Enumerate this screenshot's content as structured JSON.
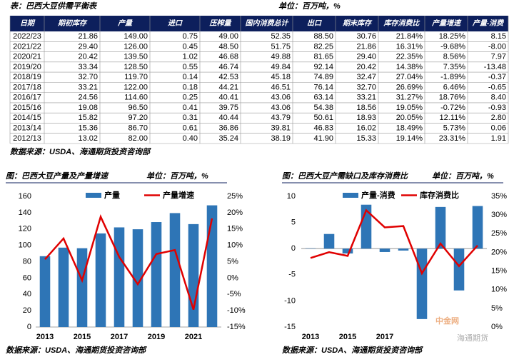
{
  "table": {
    "title": "表：巴西大豆供需平衡表",
    "unit": "单位：百万吨，%",
    "columns": [
      "日期",
      "期初库存",
      "产量",
      "进口",
      "压榨量",
      "国内消费总计",
      "出口",
      "期末库存",
      "库存消费比",
      "产量增速",
      "产量-消费"
    ],
    "rows": [
      [
        "2022/23",
        "21.86",
        "149.00",
        "0.75",
        "49.00",
        "52.35",
        "88.50",
        "30.76",
        "21.84%",
        "18.25%",
        "8.15"
      ],
      [
        "2021/22",
        "29.40",
        "126.00",
        "0.45",
        "48.50",
        "51.75",
        "82.25",
        "21.86",
        "16.31%",
        "-9.68%",
        "-8.00"
      ],
      [
        "2020/21",
        "20.42",
        "139.50",
        "1.02",
        "46.68",
        "49.88",
        "81.65",
        "29.40",
        "22.35%",
        "8.56%",
        "7.97"
      ],
      [
        "2019/20",
        "33.34",
        "128.50",
        "0.55",
        "46.74",
        "49.84",
        "92.14",
        "20.42",
        "14.38%",
        "7.35%",
        "-13.48"
      ],
      [
        "2018/19",
        "32.70",
        "119.70",
        "0.14",
        "42.53",
        "45.18",
        "74.89",
        "32.47",
        "27.04%",
        "-1.89%",
        "-0.37"
      ],
      [
        "2017/18",
        "33.21",
        "122.00",
        "0.18",
        "44.21",
        "46.51",
        "76.14",
        "32.70",
        "26.69%",
        "6.46%",
        "-0.65"
      ],
      [
        "2016/17",
        "24.56",
        "114.60",
        "0.25",
        "40.41",
        "43.06",
        "63.14",
        "33.21",
        "31.27%",
        "18.76%",
        "8.40"
      ],
      [
        "2015/16",
        "19.08",
        "96.50",
        "0.41",
        "39.75",
        "43.06",
        "54.38",
        "18.56",
        "19.05%",
        "-0.72%",
        "-0.93"
      ],
      [
        "2014/15",
        "15.82",
        "97.20",
        "0.31",
        "40.44",
        "43.79",
        "50.61",
        "18.93",
        "20.05%",
        "12.11%",
        "2.80"
      ],
      [
        "2013/14",
        "15.36",
        "86.70",
        "0.61",
        "36.86",
        "39.81",
        "46.83",
        "16.02",
        "18.49%",
        "5.73%",
        "0.06"
      ],
      [
        "2012/13",
        "13.02",
        "82.00",
        "0.40",
        "35.24",
        "38.19",
        "41.90",
        "15.33",
        "19.14%",
        "23.31%",
        "1.91"
      ]
    ],
    "source": "数据来源：USDA、海通期货投资咨询部"
  },
  "chart_data": [
    {
      "type": "combo",
      "title": "图：巴西大豆产量及产量增速",
      "unit": "单位：百万吨，%",
      "categories": [
        "2013",
        null,
        "2015",
        null,
        "2017",
        null,
        "2019",
        null,
        "2021",
        null
      ],
      "series": [
        {
          "name": "产量",
          "type": "bar",
          "color": "#2e75b6",
          "values": [
            86.7,
            97.2,
            96.5,
            114.6,
            122.0,
            119.7,
            128.5,
            139.5,
            126.0,
            149.0
          ]
        },
        {
          "name": "产量增速",
          "type": "line",
          "axis": "y2",
          "color": "#e00000",
          "values": [
            5.73,
            12.11,
            -0.72,
            18.76,
            6.46,
            -1.89,
            7.35,
            8.56,
            -9.68,
            18.25
          ]
        }
      ],
      "ylim": [
        0,
        160
      ],
      "yticks": [
        0,
        20,
        40,
        60,
        80,
        100,
        120,
        140,
        160
      ],
      "y2lim": [
        -15,
        25
      ],
      "y2ticks": [
        {
          "value": -15,
          "label": "-15%"
        },
        {
          "value": -10,
          "label": "-10%"
        },
        {
          "value": -5,
          "label": "-5%"
        },
        {
          "value": 0,
          "label": "0%"
        },
        {
          "value": 5,
          "label": "5%"
        },
        {
          "value": 10,
          "label": "10%"
        },
        {
          "value": 15,
          "label": "15%"
        },
        {
          "value": 20,
          "label": "20%"
        },
        {
          "value": 25,
          "label": "25%"
        }
      ],
      "source": "数据来源：USDA、海通期货投资咨询部"
    },
    {
      "type": "combo",
      "title": "图：巴西大豆产需缺口及库存消费比",
      "unit": "单位：百万吨，%",
      "categories": [
        "2013",
        null,
        "2015",
        null,
        "2017",
        null,
        null,
        null,
        null,
        null
      ],
      "series": [
        {
          "name": "产量-消费",
          "type": "bar",
          "color": "#2e75b6",
          "values": [
            0.06,
            2.8,
            -0.93,
            8.4,
            -0.65,
            -0.37,
            -13.48,
            7.97,
            -8.0,
            8.15
          ]
        },
        {
          "name": "库存消费比",
          "type": "line",
          "axis": "y2",
          "color": "#e00000",
          "values": [
            18.49,
            20.05,
            19.05,
            31.27,
            26.69,
            27.04,
            14.38,
            22.35,
            16.31,
            21.84
          ]
        }
      ],
      "ylim": [
        -15,
        10
      ],
      "yticks": [
        -15,
        -10,
        -5,
        0,
        5,
        10
      ],
      "y2lim": [
        0,
        35
      ],
      "y2ticks": [
        {
          "value": 0,
          "label": "0%"
        },
        {
          "value": 5,
          "label": "5%"
        },
        {
          "value": 10,
          "label": "10%"
        },
        {
          "value": 15,
          "label": "15%"
        },
        {
          "value": 20,
          "label": "20%"
        },
        {
          "value": 25,
          "label": "25%"
        },
        {
          "value": 30,
          "label": "30%"
        },
        {
          "value": 35,
          "label": "35%"
        }
      ],
      "source": "数据来源：USDA、海通期货投资咨询部"
    }
  ],
  "watermark": [
    "中金网",
    "海通期货"
  ]
}
